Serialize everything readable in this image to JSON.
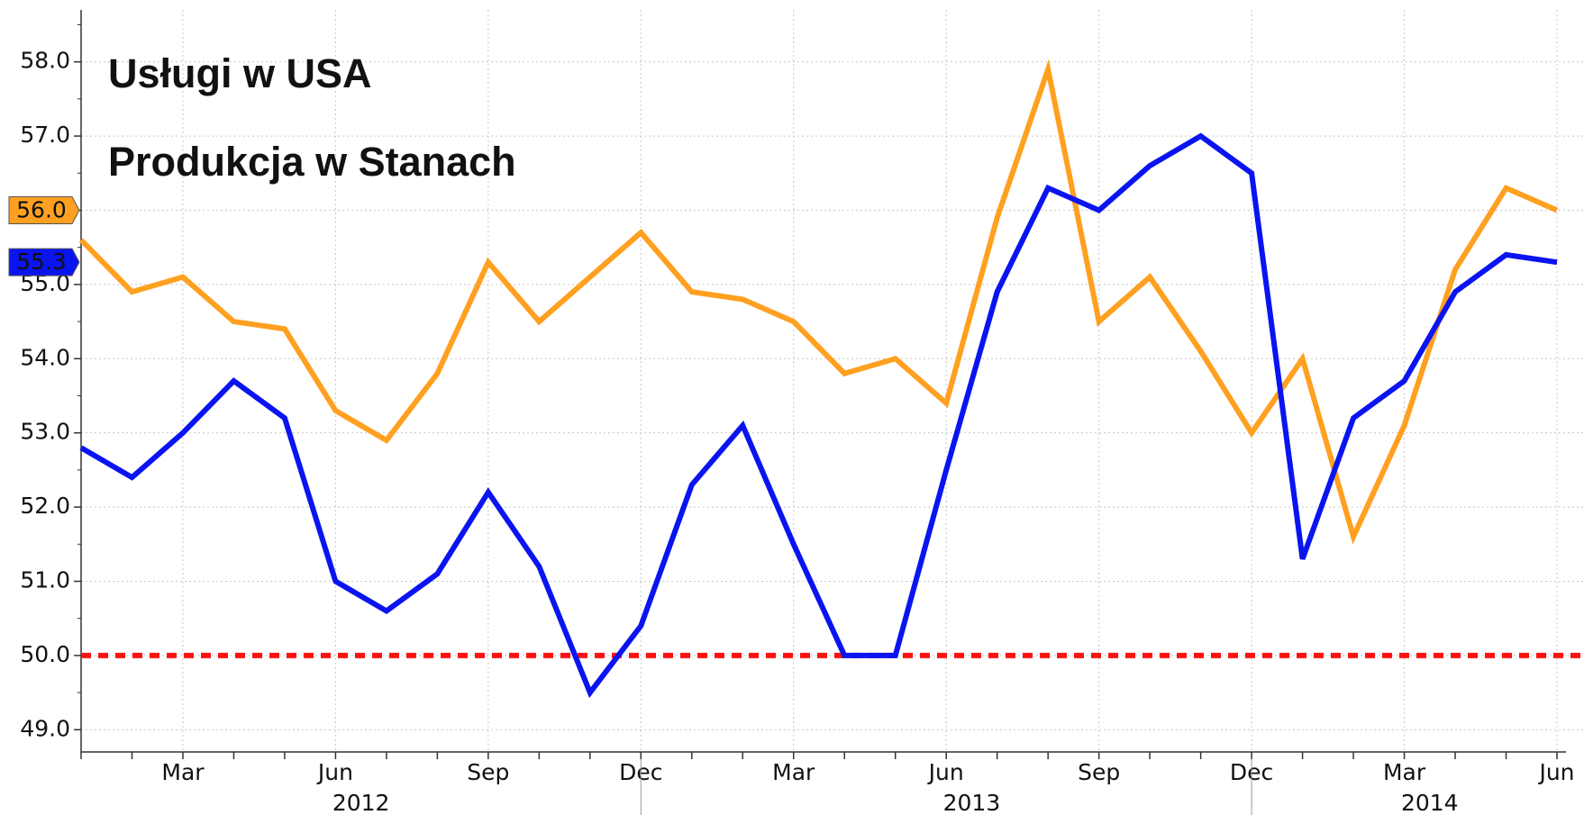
{
  "chart_data": {
    "type": "line",
    "categories": [
      null,
      null,
      "Mar",
      null,
      null,
      "Jun",
      null,
      null,
      "Sep",
      null,
      null,
      "Dec",
      null,
      null,
      "Mar",
      null,
      null,
      "Jun",
      null,
      null,
      "Sep",
      null,
      null,
      "Dec",
      null,
      null,
      "Mar",
      null,
      null,
      "Jun"
    ],
    "year_labels": [
      "2012",
      "2013",
      "2014"
    ],
    "series": [
      {
        "name": "Usługi w USA",
        "color": "#ffa020",
        "legend_color": "#e8780f",
        "end_label": "56.0",
        "values": [
          55.6,
          54.9,
          55.1,
          54.5,
          54.4,
          53.3,
          52.9,
          53.8,
          55.3,
          54.5,
          55.1,
          55.7,
          54.9,
          54.8,
          54.5,
          53.8,
          54.0,
          53.4,
          55.9,
          57.9,
          54.5,
          55.1,
          54.1,
          53.0,
          54.0,
          51.6,
          53.1,
          55.2,
          56.3,
          56.0
        ]
      },
      {
        "name": "Produkcja w Stanach",
        "color": "#0a14f0",
        "legend_color": "#1414c8",
        "end_label": "55.3",
        "values": [
          52.8,
          52.4,
          53.0,
          53.7,
          53.2,
          51.0,
          50.6,
          51.1,
          52.2,
          51.2,
          49.5,
          50.4,
          52.3,
          53.1,
          51.5,
          50.0,
          50.0,
          52.5,
          54.9,
          56.3,
          56.0,
          56.6,
          57.0,
          56.5,
          51.3,
          53.2,
          53.7,
          54.9,
          55.4,
          55.3
        ]
      }
    ],
    "reference_line": {
      "value": 50,
      "color": "#ff1010"
    },
    "ylim": [
      48.7,
      58.7
    ],
    "yticks": [
      {
        "value": 49,
        "label": "49.0"
      },
      {
        "value": 50,
        "label": "50.0"
      },
      {
        "value": 51,
        "label": "51.0"
      },
      {
        "value": 52,
        "label": "52.0"
      },
      {
        "value": 53,
        "label": "53.0"
      },
      {
        "value": 54,
        "label": "54.0"
      },
      {
        "value": 55,
        "label": "55.0"
      },
      {
        "value": 56,
        "label": "56.0"
      },
      {
        "value": 57,
        "label": "57.0"
      },
      {
        "value": 58,
        "label": "58.0"
      }
    ],
    "grid": true
  }
}
